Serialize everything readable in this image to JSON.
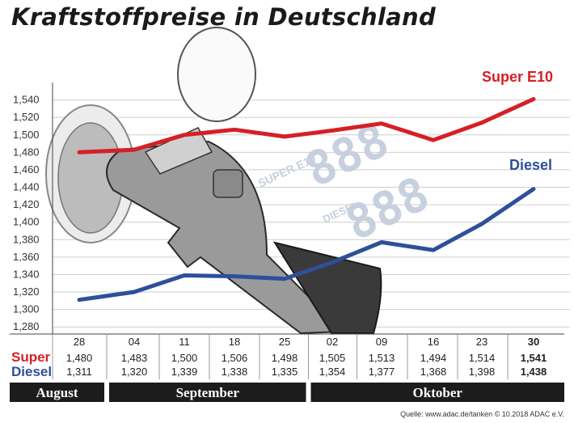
{
  "title": "Kraftstoffpreise in Deutschland",
  "source": "Quelle: www.adac.de/tanken   © 10.2018  ADAC e.V.",
  "colors": {
    "super": "#d42026",
    "diesel": "#2e4f9a",
    "bar": "#1c1c1c"
  },
  "row_labels": {
    "super": "Super",
    "diesel": "Diesel"
  },
  "months": [
    {
      "label": "August",
      "from": 0,
      "to": 0
    },
    {
      "label": "September",
      "from": 1,
      "to": 4
    },
    {
      "label": "Oktober",
      "from": 5,
      "to": 9
    }
  ],
  "pump_display": {
    "super_label": "SUPER E10",
    "diesel_label": "DIESEL",
    "digits": "888"
  },
  "chart_data": {
    "type": "line",
    "categories": [
      "28",
      "04",
      "11",
      "18",
      "25",
      "02",
      "09",
      "16",
      "23",
      "30"
    ],
    "ylim": [
      1.27,
      1.56
    ],
    "yticks": [
      "1,280",
      "1,300",
      "1,320",
      "1,340",
      "1,360",
      "1,380",
      "1,400",
      "1,420",
      "1,440",
      "1,460",
      "1,480",
      "1,500",
      "1,520",
      "1,540"
    ],
    "series": [
      {
        "name": "Super E10",
        "key": "super",
        "values": [
          1.48,
          1.483,
          1.5,
          1.506,
          1.498,
          1.505,
          1.513,
          1.494,
          1.514,
          1.541
        ],
        "labels": [
          "1,480",
          "1,483",
          "1,500",
          "1,506",
          "1,498",
          "1,505",
          "1,513",
          "1,494",
          "1,514",
          "1,541"
        ]
      },
      {
        "name": "Diesel",
        "key": "diesel",
        "values": [
          1.311,
          1.32,
          1.339,
          1.338,
          1.335,
          1.354,
          1.377,
          1.368,
          1.398,
          1.438
        ],
        "labels": [
          "1,311",
          "1,320",
          "1,339",
          "1,338",
          "1,335",
          "1,354",
          "1,377",
          "1,368",
          "1,398",
          "1,438"
        ]
      }
    ]
  }
}
